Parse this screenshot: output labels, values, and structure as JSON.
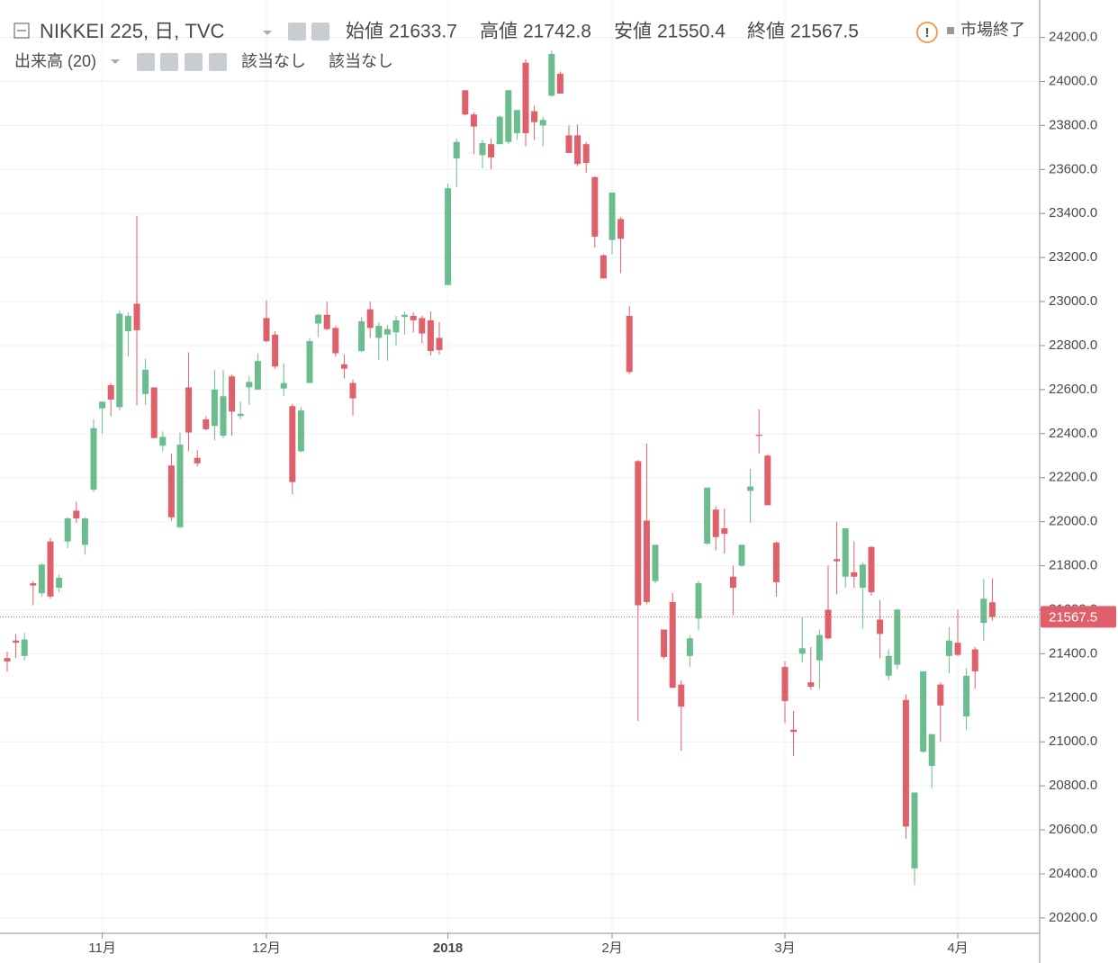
{
  "chart_data": {
    "type": "candlestick",
    "title": "NIKKEI 225, 日, TVC",
    "ohlc_labels": {
      "open": "始値",
      "high": "高値",
      "low": "安値",
      "close": "終値"
    },
    "indicator": "出来高 (20)",
    "indicator_values": [
      "該当なし",
      "該当なし"
    ],
    "status": "市場終了",
    "up_color": "#6bbd8e",
    "down_color": "#df5f6b",
    "grid": true,
    "categories": [
      null,
      null,
      null,
      null,
      null,
      null,
      null,
      null,
      null,
      null,
      null,
      "11月",
      null,
      null,
      null,
      null,
      null,
      null,
      null,
      null,
      null,
      null,
      null,
      null,
      null,
      null,
      null,
      null,
      null,
      null,
      "12月",
      null,
      null,
      null,
      null,
      null,
      null,
      null,
      null,
      null,
      null,
      null,
      null,
      null,
      null,
      null,
      null,
      null,
      null,
      null,
      null,
      "2018",
      null,
      null,
      null,
      null,
      null,
      null,
      null,
      null,
      null,
      null,
      null,
      null,
      null,
      null,
      null,
      null,
      null,
      null,
      "2月",
      null,
      null,
      null,
      null,
      null,
      null,
      null,
      null,
      null,
      null,
      null,
      null,
      null,
      null,
      null,
      null,
      null,
      null,
      null,
      "3月",
      null,
      null,
      null,
      null,
      null,
      null,
      null,
      null,
      null,
      null,
      null,
      null,
      null,
      null,
      null,
      null,
      null,
      null,
      null,
      "4月",
      null,
      null,
      null,
      null
    ],
    "open": [
      21380,
      21460,
      21390,
      21720,
      21675,
      21910,
      21700,
      21910,
      22050,
      21895,
      22145,
      22515,
      22620,
      22520,
      22865,
      22990,
      22580,
      22610,
      22345,
      22255,
      21975,
      22610,
      22290,
      22465,
      22435,
      22390,
      22660,
      22480,
      22610,
      22600,
      22925,
      22850,
      22605,
      22525,
      22320,
      22630,
      22900,
      22940,
      22880,
      22715,
      22630,
      22775,
      22965,
      22835,
      22850,
      22860,
      22930,
      22935,
      22925,
      22915,
      22835,
      23075,
      23650,
      23960,
      23850,
      23665,
      23715,
      23715,
      23725,
      23765,
      24085,
      23865,
      23800,
      23935,
      24035,
      23755,
      23755,
      23715,
      23565,
      23210,
      23280,
      23375,
      22935,
      22275,
      22005,
      21730,
      21510,
      21635,
      21260,
      21390,
      21560,
      21900,
      22055,
      21970,
      21750,
      21800,
      22140,
      22395,
      22300,
      21905,
      21340,
      21055,
      21400,
      21270,
      21370,
      21600,
      21830,
      21750,
      21770,
      21700,
      21885,
      21555,
      21300,
      21350,
      21190,
      20425,
      20955,
      20890,
      21260,
      21390,
      21450,
      21115,
      21420,
      21540,
      21633.7
    ],
    "high": [
      21410,
      21490,
      21495,
      21730,
      21810,
      21925,
      21760,
      22020,
      22090,
      22020,
      22465,
      22545,
      22630,
      22960,
      22950,
      23390,
      22740,
      22610,
      22410,
      22310,
      22405,
      22770,
      22325,
      22480,
      22690,
      22690,
      22670,
      22545,
      22660,
      22765,
      23005,
      22865,
      22720,
      22535,
      22520,
      22835,
      22945,
      23000,
      22890,
      22760,
      22645,
      22930,
      23000,
      22905,
      22895,
      22935,
      22955,
      22950,
      22935,
      22955,
      22905,
      23535,
      23740,
      23960,
      23860,
      23735,
      23740,
      23845,
      23960,
      23870,
      24100,
      23890,
      23840,
      24140,
      24045,
      23800,
      23805,
      23725,
      23570,
      23215,
      23495,
      23385,
      22980,
      22280,
      22355,
      21895,
      21510,
      21675,
      21280,
      21485,
      21730,
      22155,
      22070,
      22060,
      21800,
      21895,
      22240,
      22510,
      22305,
      21910,
      21365,
      21140,
      21565,
      21430,
      21510,
      21800,
      22000,
      21970,
      21910,
      21815,
      21890,
      21645,
      21420,
      21605,
      21215,
      20770,
      21320,
      21030,
      21270,
      21520,
      21600,
      21335,
      21430,
      21740,
      21742.8
    ],
    "low": [
      21320,
      21380,
      21370,
      21620,
      21660,
      21650,
      21680,
      21880,
      21995,
      21850,
      22135,
      22400,
      22480,
      22505,
      22750,
      22530,
      22530,
      22380,
      22320,
      22005,
      21970,
      22320,
      22250,
      22415,
      22370,
      22380,
      22390,
      22465,
      22530,
      22600,
      22815,
      22695,
      22570,
      22125,
      22315,
      22630,
      22840,
      22870,
      22750,
      22650,
      22480,
      22770,
      22835,
      22735,
      22730,
      22800,
      22850,
      22860,
      22810,
      22755,
      22760,
      23075,
      23520,
      23845,
      23670,
      23605,
      23600,
      23715,
      23715,
      23735,
      23705,
      23735,
      23705,
      23930,
      23945,
      23680,
      23615,
      23585,
      23245,
      23105,
      23215,
      23130,
      22670,
      21095,
      21625,
      21720,
      21375,
      21245,
      20960,
      21340,
      21505,
      21895,
      21870,
      21855,
      21575,
      21795,
      21995,
      22310,
      22075,
      21660,
      21085,
      20935,
      21360,
      21235,
      21240,
      21465,
      21670,
      21700,
      21700,
      21515,
      21665,
      21380,
      21280,
      21330,
      20560,
      20350,
      20950,
      20790,
      21000,
      21310,
      21390,
      21055,
      21240,
      21460,
      21550.4
    ],
    "close": [
      21365,
      21450,
      21465,
      21710,
      21805,
      21660,
      21745,
      22015,
      22015,
      22015,
      22425,
      22545,
      22555,
      22945,
      22935,
      22870,
      22690,
      22380,
      22385,
      22020,
      22350,
      22405,
      22265,
      22420,
      22600,
      22570,
      22500,
      22490,
      22635,
      22730,
      22820,
      22705,
      22630,
      22180,
      22505,
      22820,
      22940,
      22875,
      22765,
      22695,
      22560,
      22910,
      22880,
      22890,
      22875,
      22915,
      22940,
      22915,
      22855,
      22775,
      22780,
      23515,
      23725,
      23850,
      23795,
      23720,
      23655,
      23840,
      23960,
      23870,
      23765,
      23815,
      23825,
      24125,
      23945,
      23675,
      23625,
      23630,
      23295,
      23105,
      23495,
      23285,
      22680,
      21620,
      21635,
      21895,
      21385,
      21245,
      21160,
      21470,
      21720,
      22155,
      21930,
      21945,
      21700,
      21895,
      22160,
      22390,
      22075,
      21725,
      21185,
      21045,
      21425,
      21250,
      21485,
      21470,
      21820,
      21970,
      21750,
      21805,
      21680,
      21490,
      21390,
      21600,
      20615,
      20770,
      21320,
      21035,
      21165,
      21460,
      21395,
      21300,
      21320,
      21650,
      21567.5
    ],
    "ylim": [
      20130,
      24370
    ],
    "yticks": [
      {
        "value": 20200,
        "label": "20200.0"
      },
      {
        "value": 20400,
        "label": "20400.0"
      },
      {
        "value": 20600,
        "label": "20600.0"
      },
      {
        "value": 20800,
        "label": "20800.0"
      },
      {
        "value": 21000,
        "label": "21000.0"
      },
      {
        "value": 21200,
        "label": "21200.0"
      },
      {
        "value": 21400,
        "label": "21400.0"
      },
      {
        "value": 21600,
        "label": "21600.0"
      },
      {
        "value": 21800,
        "label": "21800.0"
      },
      {
        "value": 22000,
        "label": "22000.0"
      },
      {
        "value": 22200,
        "label": "22200.0"
      },
      {
        "value": 22400,
        "label": "22400.0"
      },
      {
        "value": 22600,
        "label": "22600.0"
      },
      {
        "value": 22800,
        "label": "22800.0"
      },
      {
        "value": 23000,
        "label": "23000.0"
      },
      {
        "value": 23200,
        "label": "23200.0"
      },
      {
        "value": 23400,
        "label": "23400.0"
      },
      {
        "value": 23600,
        "label": "23600.0"
      },
      {
        "value": 23800,
        "label": "23800.0"
      },
      {
        "value": 24000,
        "label": "24000.0"
      },
      {
        "value": 24200,
        "label": "24200.0"
      }
    ]
  }
}
